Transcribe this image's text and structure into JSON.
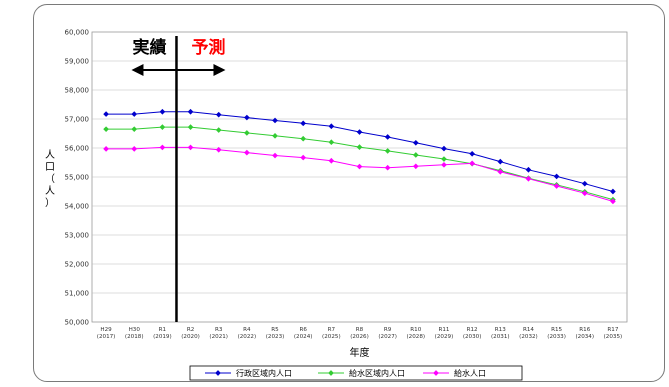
{
  "chart_data": {
    "type": "line",
    "categories": [
      [
        "H29",
        "(2017)"
      ],
      [
        "H30",
        "(2018)"
      ],
      [
        "R1",
        "(2019)"
      ],
      [
        "R2",
        "(2020)"
      ],
      [
        "R3",
        "(2021)"
      ],
      [
        "R4",
        "(2022)"
      ],
      [
        "R5",
        "(2023)"
      ],
      [
        "R6",
        "(2024)"
      ],
      [
        "R7",
        "(2025)"
      ],
      [
        "R8",
        "(2026)"
      ],
      [
        "R9",
        "(2027)"
      ],
      [
        "R10",
        "(2028)"
      ],
      [
        "R11",
        "(2029)"
      ],
      [
        "R12",
        "(2030)"
      ],
      [
        "R13",
        "(2031)"
      ],
      [
        "R14",
        "(2032)"
      ],
      [
        "R15",
        "(2033)"
      ],
      [
        "R16",
        "(2034)"
      ],
      [
        "R17",
        "(2035)"
      ]
    ],
    "series": [
      {
        "name": "行政区域内人口",
        "color": "#0000cc",
        "values": [
          57170,
          57170,
          57250,
          57250,
          57150,
          57050,
          56950,
          56850,
          56750,
          56550,
          56380,
          56180,
          55980,
          55800,
          55530,
          55250,
          55020,
          54770,
          54500
        ]
      },
      {
        "name": "給水区域内人口",
        "color": "#33cc33",
        "values": [
          56650,
          56650,
          56720,
          56720,
          56620,
          56520,
          56420,
          56320,
          56200,
          56030,
          55900,
          55760,
          55620,
          55460,
          55220,
          54960,
          54730,
          54490,
          54220
        ]
      },
      {
        "name": "給水人口",
        "color": "#ff00ff",
        "values": [
          55970,
          55970,
          56020,
          56020,
          55940,
          55840,
          55740,
          55670,
          55560,
          55360,
          55320,
          55370,
          55420,
          55470,
          55180,
          54940,
          54690,
          54440,
          54160
        ]
      }
    ],
    "ylim": [
      50000,
      60000
    ],
    "yticks": [
      "50,000",
      "51,000",
      "52,000",
      "53,000",
      "54,000",
      "55,000",
      "56,000",
      "57,000",
      "58,000",
      "59,000",
      "60,000"
    ],
    "ylabel": "人口（人）",
    "xlabel": "年度",
    "annotations": {
      "actual": "実績",
      "forecast": "予測",
      "divider_after_index": 2
    },
    "legend_position": "bottom",
    "grid": "horizontal"
  }
}
